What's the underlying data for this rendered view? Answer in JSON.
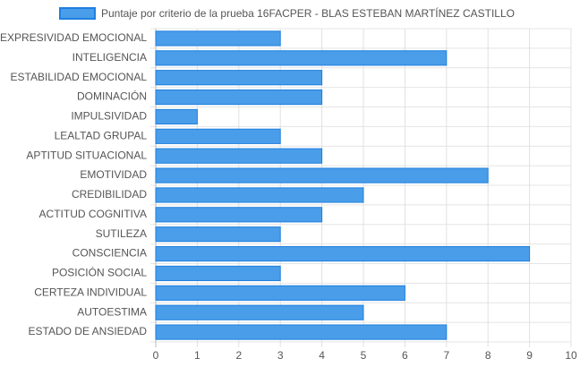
{
  "chart_data": {
    "type": "bar",
    "orientation": "horizontal",
    "categories": [
      "EXPRESIVIDAD EMOCIONAL",
      "INTELIGENCIA",
      "ESTABILIDAD EMOCIONAL",
      "DOMINACIÓN",
      "IMPULSIVIDAD",
      "LEALTAD GRUPAL",
      "APTITUD SITUACIONAL",
      "EMOTIVIDAD",
      "CREDIBILIDAD",
      "ACTITUD COGNITIVA",
      "SUTILEZA",
      "CONSCIENCIA",
      "POSICIÓN SOCIAL",
      "CERTEZA INDIVIDUAL",
      "AUTOESTIMA",
      "ESTADO DE ANSIEDAD"
    ],
    "series": [
      {
        "name": "Puntaje por criterio de la prueba 16FACPER - BLAS ESTEBAN MARTÍNEZ CASTILLO",
        "color": "#4a9de8",
        "border_color": "#1e7fe0",
        "values": [
          3,
          7,
          4,
          4,
          1,
          3,
          4,
          8,
          5,
          4,
          3,
          9,
          3,
          6,
          5,
          7
        ]
      }
    ],
    "xlim": [
      0,
      10
    ],
    "xticks": [
      0,
      1,
      2,
      3,
      4,
      5,
      6,
      7,
      8,
      9,
      10
    ],
    "grid": true,
    "legend": "top"
  }
}
